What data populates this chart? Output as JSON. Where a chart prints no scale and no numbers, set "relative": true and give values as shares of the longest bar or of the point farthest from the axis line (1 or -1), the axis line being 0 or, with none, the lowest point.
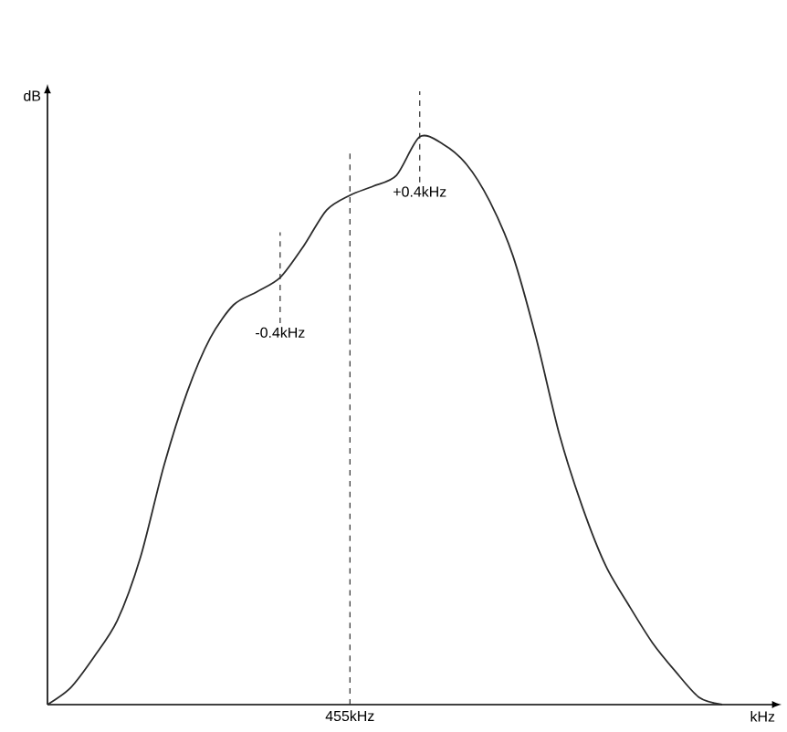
{
  "chart_data": {
    "type": "line",
    "relative": true,
    "xlabel": "kHz",
    "ylabel": "dB",
    "categories": [
      null,
      null,
      null,
      null,
      null,
      null,
      null,
      null,
      null,
      null,
      null,
      null,
      null,
      null,
      null,
      null,
      null,
      null,
      null,
      null,
      null,
      null,
      null,
      null,
      null,
      null,
      null,
      null,
      null,
      null
    ],
    "series": [
      {
        "color": "#2b2b2b",
        "values": [
          0,
          0.03,
          0.084,
          0.148,
          0.26,
          0.42,
          0.55,
          0.646,
          0.704,
          0.727,
          0.752,
          0.807,
          0.871,
          0.897,
          0.913,
          0.932,
          1.0,
          0.987,
          0.952,
          0.887,
          0.791,
          0.646,
          0.476,
          0.347,
          0.244,
          0.174,
          0.109,
          0.058,
          0.013,
          0
        ]
      }
    ],
    "annotations": [
      "455kHz",
      "-0.4kHz",
      "+0.4kHz"
    ]
  }
}
